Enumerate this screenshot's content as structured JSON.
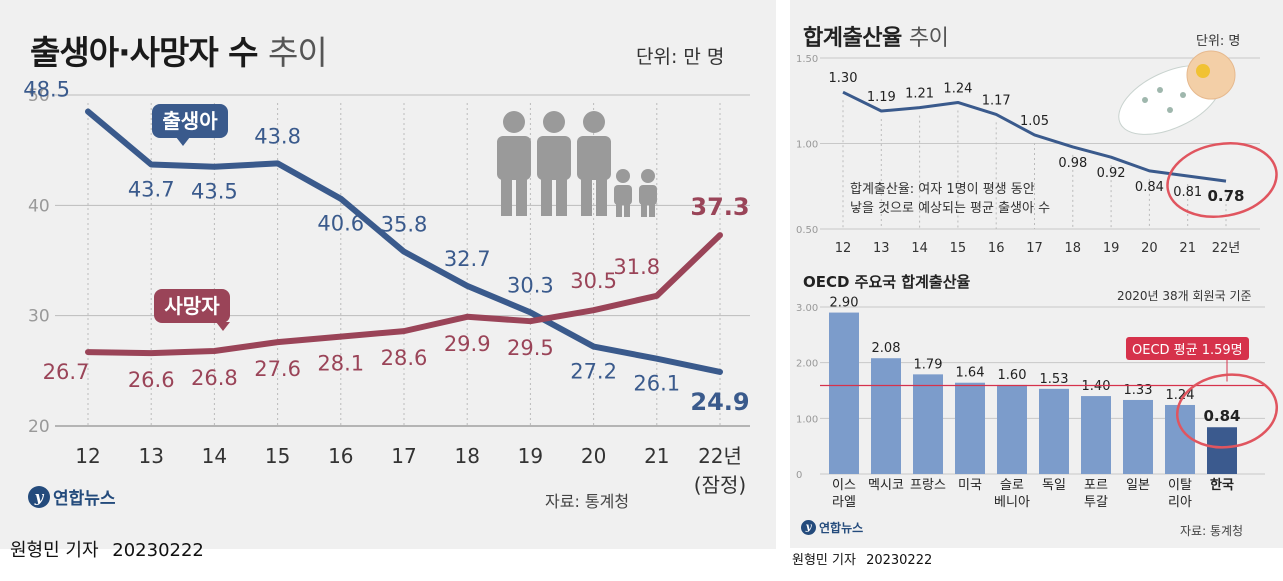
{
  "left_chart": {
    "title": "출생아·사망자 수",
    "title_suffix": "추이",
    "unit": "단위: 만 명",
    "source": "자료: 통계청",
    "logo_text": "연합뉴스",
    "byline": "원형민 기자",
    "date": "20230222",
    "x_last_note": "(잠정)"
  },
  "top_right": {
    "title": "합계출산율",
    "title_suffix": "추이",
    "unit": "단위: 명",
    "note_line1": "합계출산율: 여자 1명이 평생 동안",
    "note_line2": "낳을 것으로 예상되는 평균 출생아 수"
  },
  "bottom_right": {
    "title": "OECD 주요국 합계출산율",
    "subtitle": "2020년 38개 회원국 기준",
    "average_label": "OECD 평균 1.59명",
    "source": "자료: 통계청",
    "logo_text": "연합뉴스",
    "byline": "원형민 기자",
    "date": "20230222"
  },
  "colors": {
    "births": "#3a5a8c",
    "deaths": "#9a4458",
    "bar": "#7c9ccb",
    "bar_highlight": "#3b5a8e",
    "accent_red": "#d6324b",
    "circle": "#e0555f"
  },
  "chart_data": [
    {
      "type": "line",
      "title": "출생아·사망자 수 추이",
      "x": [
        "12",
        "13",
        "14",
        "15",
        "16",
        "17",
        "18",
        "19",
        "20",
        "21",
        "22년"
      ],
      "series": [
        {
          "name": "출생아",
          "values": [
            48.5,
            43.7,
            43.5,
            43.8,
            40.6,
            35.8,
            32.7,
            30.3,
            27.2,
            26.1,
            24.9
          ]
        },
        {
          "name": "사망자",
          "values": [
            26.7,
            26.6,
            26.8,
            27.6,
            28.1,
            28.6,
            29.9,
            29.5,
            30.5,
            31.8,
            37.3
          ]
        }
      ],
      "series_labels": [
        "48.5",
        "43.7",
        "43.5",
        "43.8",
        "40.6",
        "35.8",
        "32.7",
        "30.3",
        "27.2",
        "26.1",
        "24.9",
        "26.7",
        "26.6",
        "26.8",
        "27.6",
        "28.1",
        "28.6",
        "29.9",
        "29.5",
        "30.5",
        "31.8",
        "37.3"
      ],
      "ylim": [
        20,
        50
      ],
      "yticks": [
        "20",
        "30",
        "40",
        "50"
      ],
      "ylabel": "",
      "xlabel": ""
    },
    {
      "type": "line",
      "title": "합계출산율 추이",
      "x": [
        "12",
        "13",
        "14",
        "15",
        "16",
        "17",
        "18",
        "19",
        "20",
        "21",
        "22년"
      ],
      "values": [
        1.3,
        1.19,
        1.21,
        1.24,
        1.17,
        1.05,
        0.98,
        0.92,
        0.84,
        0.81,
        0.78
      ],
      "labels": [
        "1.30",
        "1.19",
        "1.21",
        "1.24",
        "1.17",
        "1.05",
        "0.98",
        "0.92",
        "0.84",
        "0.81",
        "0.78"
      ],
      "ylim": [
        0.5,
        1.5
      ],
      "yticks": [
        "0.50",
        "1.00",
        "1.50"
      ]
    },
    {
      "type": "bar",
      "title": "OECD 주요국 합계출산율",
      "categories": [
        [
          "이스",
          "라엘"
        ],
        [
          "멕시코"
        ],
        [
          "프랑스"
        ],
        [
          "미국"
        ],
        [
          "슬로",
          "베니아"
        ],
        [
          "독일"
        ],
        [
          "포르",
          "투갈"
        ],
        [
          "일본"
        ],
        [
          "이탈",
          "리아"
        ],
        [
          "한국"
        ]
      ],
      "values": [
        2.9,
        2.08,
        1.79,
        1.64,
        1.6,
        1.53,
        1.4,
        1.33,
        1.24,
        0.84
      ],
      "labels": [
        "2.90",
        "2.08",
        "1.79",
        "1.64",
        "1.60",
        "1.53",
        "1.40",
        "1.33",
        "1.24",
        "0.84"
      ],
      "average": 1.59,
      "ylim": [
        0,
        3
      ],
      "yticks": [
        "0",
        "1.00",
        "2.00",
        "3.00"
      ]
    }
  ]
}
